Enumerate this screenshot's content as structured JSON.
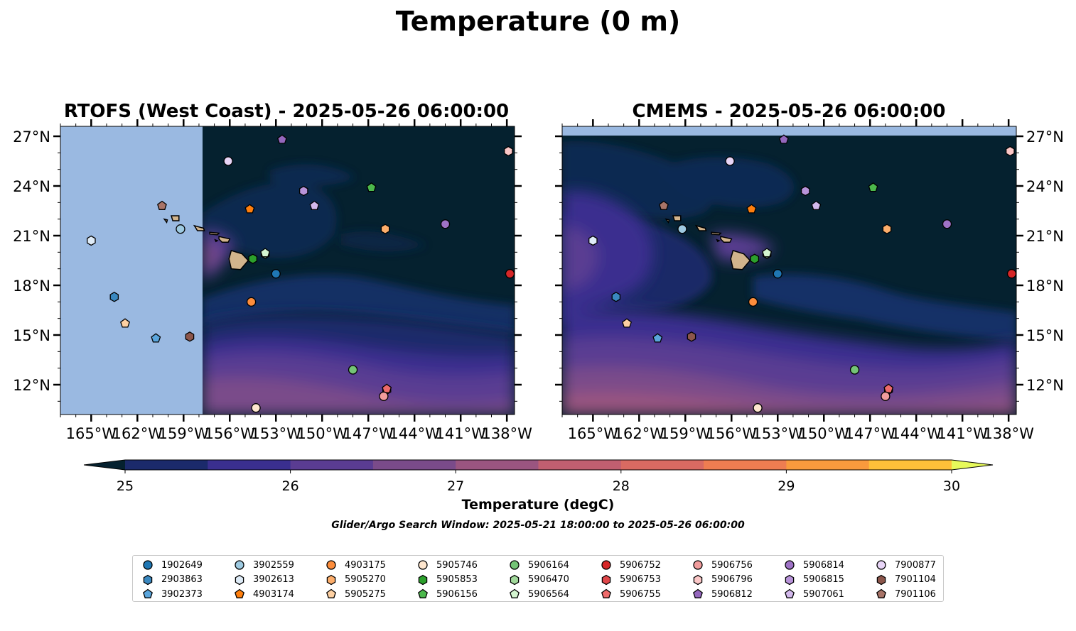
{
  "figure": {
    "suptitle": "Temperature (0 m)",
    "search_window": "Glider/Argo Search Window: 2025-05-21 18:00:00 to 2025-05-26 06:00:00"
  },
  "chart_data": [
    {
      "type": "heatmap",
      "title": "RTOFS (West Coast) - 2025-05-26 06:00:00",
      "xlabel": "",
      "ylabel": "",
      "xlim": [
        -167,
        -137.5
      ],
      "ylim": [
        10.2,
        27.6
      ],
      "x_ticks": [
        "165°W",
        "162°W",
        "159°W",
        "156°W",
        "153°W",
        "150°W",
        "147°W",
        "144°W",
        "141°W",
        "138°W"
      ],
      "y_ticks": [
        "12°N",
        "15°N",
        "18°N",
        "21°N",
        "24°N",
        "27°N"
      ],
      "y_ticks_side": "left",
      "model_domain_west_edge": -157.7,
      "colormap": "thermal",
      "background_color": "#05212f",
      "land_color": "#d2b48c",
      "no_data_color": "#9ab9e1"
    },
    {
      "type": "heatmap",
      "title": "CMEMS - 2025-05-26 06:00:00",
      "xlabel": "",
      "ylabel": "",
      "xlim": [
        -167,
        -137.5
      ],
      "ylim": [
        10.2,
        27.6
      ],
      "x_ticks": [
        "165°W",
        "162°W",
        "159°W",
        "156°W",
        "153°W",
        "150°W",
        "147°W",
        "144°W",
        "141°W",
        "138°W"
      ],
      "y_ticks": [
        "12°N",
        "15°N",
        "18°N",
        "21°N",
        "24°N",
        "27°N"
      ],
      "y_ticks_side": "right",
      "model_domain_north_edge": 27.1,
      "colormap": "thermal",
      "background_color": "#05212f",
      "land_color": "#d2b48c",
      "no_data_color": "#9ab9e1"
    }
  ],
  "colorbar": {
    "label": "Temperature (degC)",
    "min": 25,
    "max": 30,
    "step": 0.5,
    "ticks": [
      "25",
      "26",
      "27",
      "28",
      "29",
      "30"
    ],
    "extend": "both",
    "colors": [
      "#05212f",
      "#1b2a6b",
      "#3a2f8f",
      "#5a3c92",
      "#7a4b8a",
      "#9a5580",
      "#c15f70",
      "#d96a62",
      "#ee7d51",
      "#f99a3d",
      "#fec039",
      "#e7fa5a"
    ]
  },
  "floats": [
    {
      "id": "1902649",
      "marker": "circle",
      "color": "#1f77b4",
      "lon": -153.0,
      "lat": 18.7
    },
    {
      "id": "2903863",
      "marker": "hexagon",
      "color": "#3a88c0",
      "lon": -163.5,
      "lat": 17.3
    },
    {
      "id": "3902373",
      "marker": "pentagon",
      "color": "#5aa5dc",
      "lon": -160.8,
      "lat": 14.8
    },
    {
      "id": "3902559",
      "marker": "circle",
      "color": "#9ecae1",
      "lon": -159.2,
      "lat": 21.4
    },
    {
      "id": "3902613",
      "marker": "hexagon",
      "color": "#deebf7",
      "lon": -165.0,
      "lat": 20.7
    },
    {
      "id": "4903174",
      "marker": "pentagon",
      "color": "#ff7f0e",
      "lon": -154.7,
      "lat": 22.6
    },
    {
      "id": "4903175",
      "marker": "circle",
      "color": "#fd8d3c",
      "lon": -154.6,
      "lat": 17.0
    },
    {
      "id": "5905270",
      "marker": "hexagon",
      "color": "#fdae6b",
      "lon": -145.9,
      "lat": 21.4
    },
    {
      "id": "5905275",
      "marker": "pentagon",
      "color": "#fdd0a2",
      "lon": -162.8,
      "lat": 15.7
    },
    {
      "id": "5905746",
      "marker": "circle",
      "color": "#fee6ce",
      "lon": -154.3,
      "lat": 10.6
    },
    {
      "id": "5905853",
      "marker": "hexagon",
      "color": "#2ca02c",
      "lon": -154.5,
      "lat": 19.6
    },
    {
      "id": "5906156",
      "marker": "pentagon",
      "color": "#4cb84c",
      "lon": -146.8,
      "lat": 23.9
    },
    {
      "id": "5906164",
      "marker": "circle",
      "color": "#74c476",
      "lon": -148.0,
      "lat": 12.9
    },
    {
      "id": "5906470",
      "marker": "hexagon",
      "color": "#a1d99b",
      "lon": -153.7,
      "lat": 19.9
    },
    {
      "id": "5906564",
      "marker": "pentagon",
      "color": "#d4f5d0",
      "lon": -153.7,
      "lat": 19.95
    },
    {
      "id": "5906752",
      "marker": "circle",
      "color": "#d62728",
      "lon": -137.8,
      "lat": 18.7
    },
    {
      "id": "5906753",
      "marker": "hexagon",
      "color": "#e0474a",
      "lon": -145.8,
      "lat": 11.7
    },
    {
      "id": "5906755",
      "marker": "pentagon",
      "color": "#ee6a6a",
      "lon": -145.8,
      "lat": 11.75
    },
    {
      "id": "5906756",
      "marker": "circle",
      "color": "#f19c9c",
      "lon": -146.0,
      "lat": 11.3
    },
    {
      "id": "5906796",
      "marker": "hexagon",
      "color": "#fbc7c7",
      "lon": -137.9,
      "lat": 26.1
    },
    {
      "id": "5906812",
      "marker": "pentagon",
      "color": "#9467bd",
      "lon": -152.6,
      "lat": 26.8
    },
    {
      "id": "5906814",
      "marker": "circle",
      "color": "#9e72c6",
      "lon": -142.0,
      "lat": 21.7
    },
    {
      "id": "5906815",
      "marker": "hexagon",
      "color": "#b893d9",
      "lon": -151.2,
      "lat": 23.7
    },
    {
      "id": "5907061",
      "marker": "pentagon",
      "color": "#d3b9ec",
      "lon": -150.5,
      "lat": 22.8
    },
    {
      "id": "7900877",
      "marker": "circle",
      "color": "#e8d5f7",
      "lon": -156.1,
      "lat": 25.5
    },
    {
      "id": "7901104",
      "marker": "hexagon",
      "color": "#8c564b",
      "lon": -158.6,
      "lat": 14.9
    },
    {
      "id": "7901106",
      "marker": "pentagon",
      "color": "#a87468",
      "lon": -160.4,
      "lat": 22.8
    }
  ]
}
